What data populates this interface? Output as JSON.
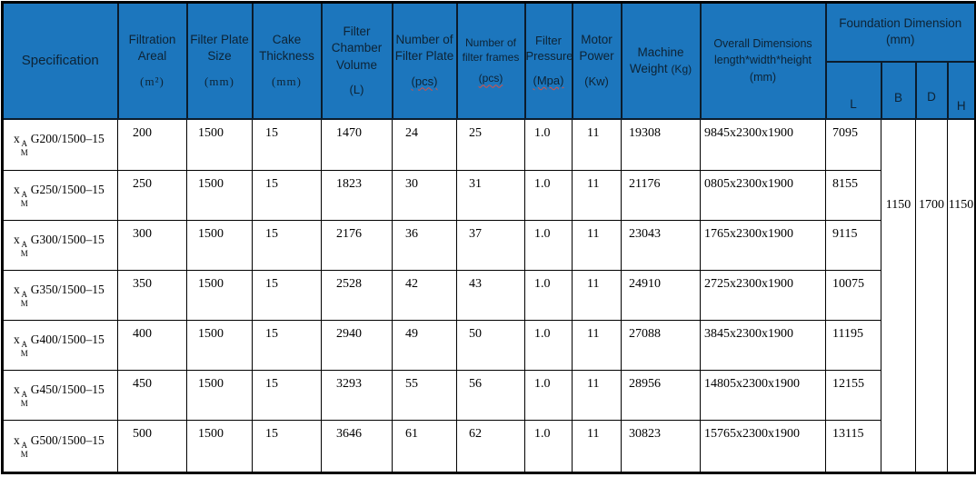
{
  "colors": {
    "header_bg": "#1C76BD",
    "header_text": "#0D2335",
    "border": "#000000",
    "misspell_underline": "#D94F43"
  },
  "header": {
    "specification": "Specification",
    "filtration_areal": {
      "title": "Filtration Areal",
      "unit": "(m²)"
    },
    "filter_plate_size": {
      "title": "Filter Plate Size",
      "unit": "(mm)"
    },
    "cake_thickness": {
      "title": "Cake Thickness",
      "unit": "(mm)"
    },
    "filter_chamber_volume": {
      "title": "Filter Chamber Volume",
      "unit": "(L)"
    },
    "number_of_filter_plate": {
      "title": "Number of Filter Plate",
      "unit": "(pcs)"
    },
    "number_of_filter_frames": {
      "title": "Number of filter frames",
      "unit": "(pcs)"
    },
    "filter_pressure": {
      "title": "Filter Pressure",
      "unit": "(Mpa)"
    },
    "motor_power": {
      "title": "Motor Power",
      "unit": "(Kw)"
    },
    "machine_weight": {
      "title": "Machine Weight",
      "unit": "(Kg)"
    },
    "overall_dimensions": {
      "title": "Overall Dimensions",
      "line2": "length*width*height",
      "unit": "(mm)"
    },
    "foundation_dimension": {
      "title": "Foundation Dimension",
      "unit": "(mm)",
      "sub_columns": [
        "L",
        "B",
        "D",
        "H"
      ]
    }
  },
  "rows": [
    {
      "spec": {
        "base": "x",
        "sup": "A",
        "sub": "M",
        "model": "G200/1500–15"
      },
      "values": [
        "200",
        "1500",
        "15",
        "1470",
        "24",
        "25",
        "1.0",
        "11",
        "19308",
        "9845x2300x1900",
        "7095"
      ]
    },
    {
      "spec": {
        "base": "x",
        "sup": "A",
        "sub": "M",
        "model": "G250/1500–15"
      },
      "values": [
        "250",
        "1500",
        "15",
        "1823",
        "30",
        "31",
        "1.0",
        "11",
        "21176",
        "0805x2300x1900",
        "8155"
      ]
    },
    {
      "spec": {
        "base": "x",
        "sup": "A",
        "sub": "M",
        "model": "G300/1500–15"
      },
      "values": [
        "300",
        "1500",
        "15",
        "2176",
        "36",
        "37",
        "1.0",
        "11",
        "23043",
        "1765x2300x1900",
        "9115"
      ]
    },
    {
      "spec": {
        "base": "x",
        "sup": "A",
        "sub": "M",
        "model": "G350/1500–15"
      },
      "values": [
        "350",
        "1500",
        "15",
        "2528",
        "42",
        "43",
        "1.0",
        "11",
        "24910",
        "2725x2300x1900",
        "10075"
      ]
    },
    {
      "spec": {
        "base": "x",
        "sup": "A",
        "sub": "M",
        "model": "G400/1500–15"
      },
      "values": [
        "400",
        "1500",
        "15",
        "2940",
        "49",
        "50",
        "1.0",
        "11",
        "27088",
        "3845x2300x1900",
        "11195"
      ]
    },
    {
      "spec": {
        "base": "x",
        "sup": "A",
        "sub": "M",
        "model": "G450/1500–15"
      },
      "values": [
        "450",
        "1500",
        "15",
        "3293",
        "55",
        "56",
        "1.0",
        "11",
        "28956",
        "14805x2300x1900",
        "12155"
      ]
    },
    {
      "spec": {
        "base": "x",
        "sup": "A",
        "sub": "M",
        "model": "G500/1500–15"
      },
      "values": [
        "500",
        "1500",
        "15",
        "3646",
        "61",
        "62",
        "1.0",
        "11",
        "30823",
        "15765x2300x1900",
        "13115"
      ]
    }
  ],
  "merged_foundation": {
    "B": "1150",
    "D": "1700",
    "H": "1150"
  }
}
